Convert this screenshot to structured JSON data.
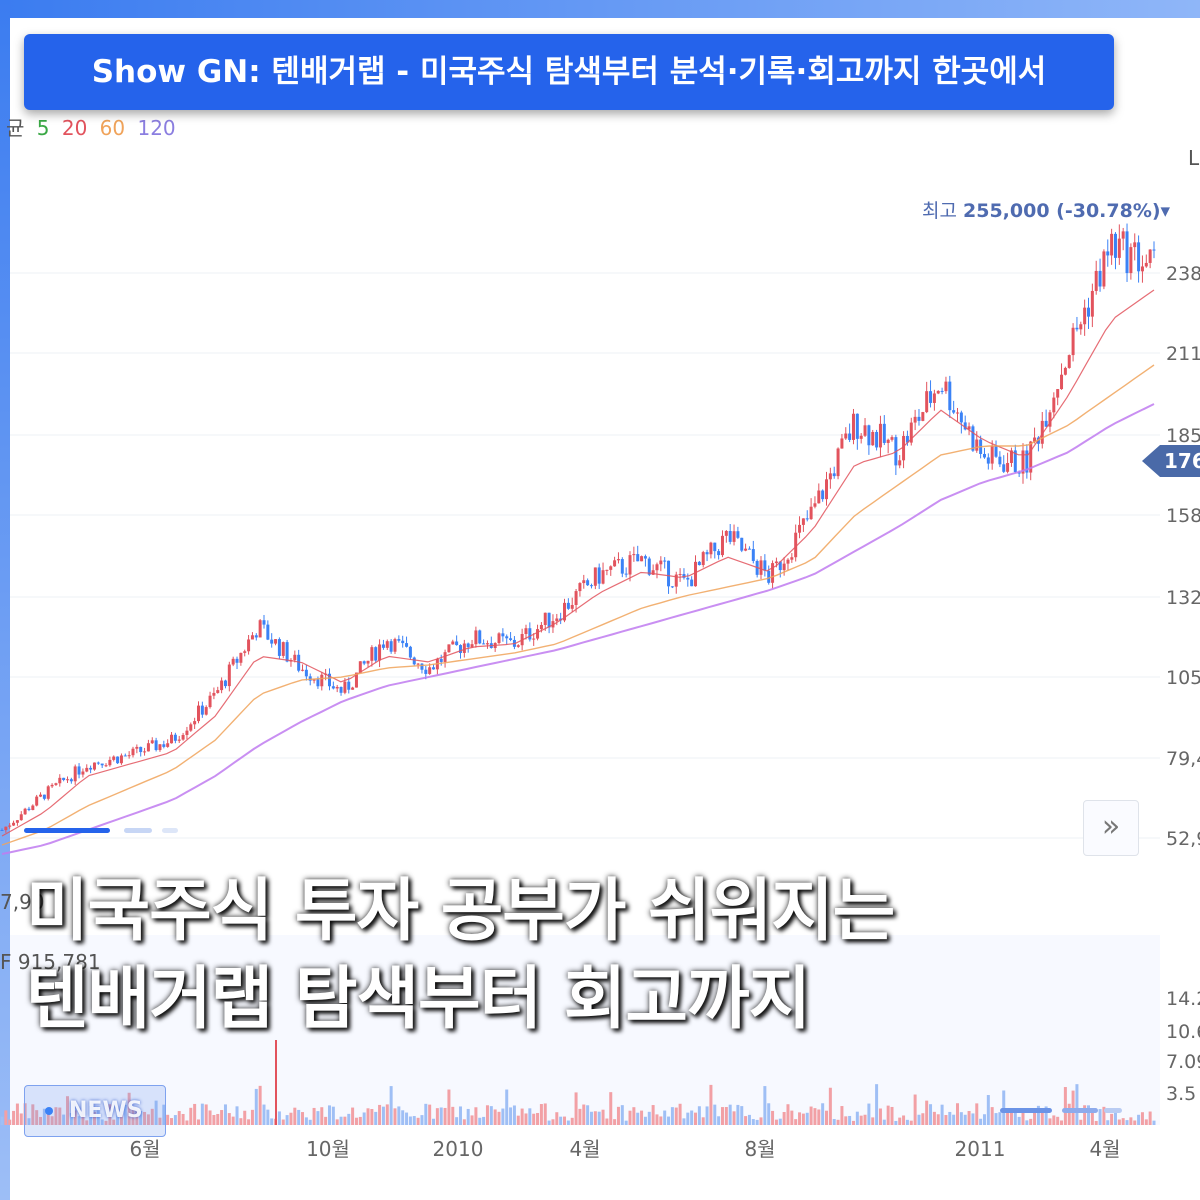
{
  "banner": {
    "title": "Show GN: 텐배거랩 - 미국주식 탐색부터 분석·기록·회고까지 한곳에서"
  },
  "ma_legend": {
    "prefix": "균",
    "items": [
      {
        "label": "5",
        "color": "#3aa845"
      },
      {
        "label": "20",
        "color": "#e2535d"
      },
      {
        "label": "60",
        "color": "#f0a35a"
      },
      {
        "label": "120",
        "color": "#9b7ee8"
      }
    ]
  },
  "corner_label": "L",
  "high_marker": {
    "label": "최고",
    "value": "255,000 (-30.78%)▾"
  },
  "current_price_tag": "176",
  "expand_icon": "double-chevron-right-icon",
  "price_axis": [
    "238",
    "211",
    "185",
    "158",
    "132",
    "105",
    "79,4",
    "52,9"
  ],
  "left_partial_price": "7,90",
  "volume_partial_value": "F 915,781",
  "volume_axis": [
    "14.2",
    "10.6",
    "7.09",
    "3.5"
  ],
  "time_axis": [
    "6월",
    "10월",
    "2010",
    "4월",
    "8월",
    "2011",
    "4월"
  ],
  "headline": {
    "line1": "미국주식 투자 공부가 쉬워지는",
    "line2": "텐배거랩 탐색부터 회고까지"
  },
  "news_badge": {
    "label": "NEWS"
  },
  "colors": {
    "ma5": "#3aa845",
    "ma20": "#e2535d",
    "ma60": "#f0a35a",
    "ma120": "#c07bf0",
    "candle_up": "#e2535d",
    "candle_down": "#3b82f6",
    "accent": "#2563eb"
  },
  "chart_data": {
    "type": "line",
    "ylim": [
      40000,
      260000
    ],
    "x_ticks": [
      "6월",
      "10월",
      "2010",
      "4월",
      "8월",
      "2011",
      "4월"
    ],
    "series": [
      {
        "name": "5",
        "values": [
          50000,
          62000,
          72000,
          75000,
          80000,
          95000,
          118000,
          104000,
          96000,
          114000,
          104000,
          114000,
          112000,
          122000,
          135000,
          140000,
          132000,
          148000,
          134000,
          156000,
          186000,
          176000,
          200000,
          174000,
          172000,
          210000,
          245000,
          238000
        ]
      },
      {
        "name": "20",
        "values": [
          48000,
          56000,
          68000,
          72000,
          76000,
          88000,
          108000,
          106000,
          99000,
          108000,
          106000,
          111000,
          112000,
          119000,
          129000,
          136000,
          134000,
          141000,
          136000,
          150000,
          172000,
          176000,
          190000,
          180000,
          174000,
          195000,
          220000,
          230000
        ]
      },
      {
        "name": "60",
        "values": [
          45000,
          50000,
          58000,
          64000,
          70000,
          80000,
          95000,
          100000,
          101000,
          104000,
          105000,
          107000,
          109000,
          112000,
          118000,
          124000,
          128000,
          131000,
          134000,
          140000,
          155000,
          165000,
          175000,
          178000,
          178000,
          185000,
          195000,
          205000
        ]
      },
      {
        "name": "120",
        "values": [
          42000,
          45000,
          50000,
          55000,
          60000,
          68000,
          78000,
          86000,
          93000,
          98000,
          101000,
          104000,
          107000,
          110000,
          114000,
          118000,
          122000,
          126000,
          130000,
          135000,
          143000,
          151000,
          160000,
          166000,
          170000,
          176000,
          185000,
          192000
        ]
      }
    ]
  }
}
